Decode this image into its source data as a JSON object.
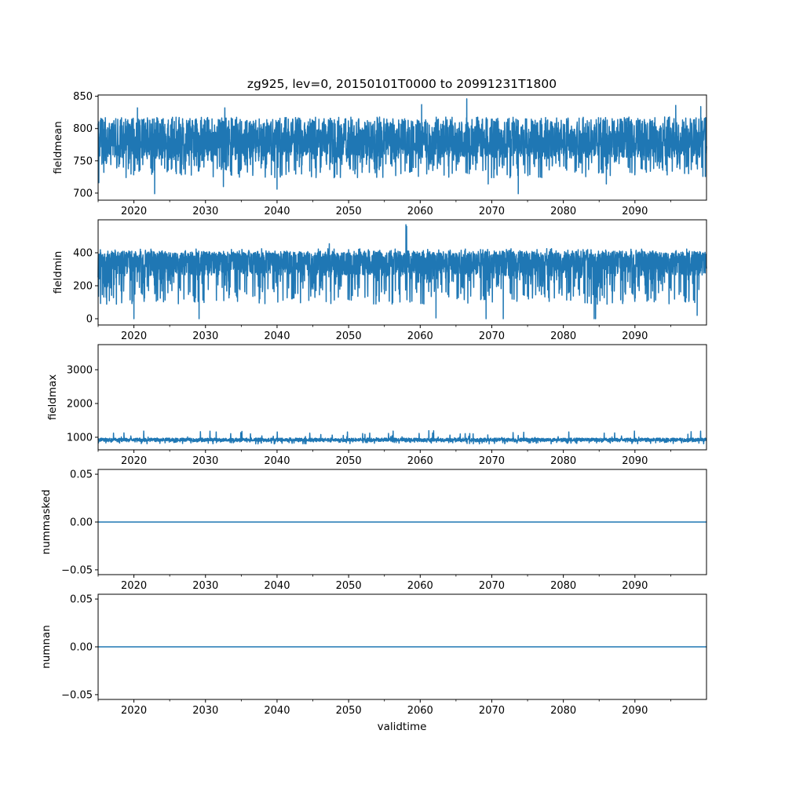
{
  "chart_data": {
    "type": "line",
    "title": "zg925, lev=0, 20150101T0000 to 20991231T1800",
    "xlabel": "validtime",
    "xlim": [
      2015,
      2100
    ],
    "xticks": [
      2020,
      2030,
      2040,
      2050,
      2060,
      2070,
      2080,
      2090
    ],
    "xtick_labels": [
      "2020",
      "2030",
      "2040",
      "2050",
      "2060",
      "2070",
      "2080",
      "2090"
    ],
    "minor_xticks": [
      2015,
      2025,
      2035,
      2045,
      2055,
      2065,
      2075,
      2085,
      2095
    ],
    "color": "#1f77b4",
    "grid": false,
    "panels": [
      {
        "ylabel": "fieldmean",
        "ylim": [
          689,
          852
        ],
        "yticks": [
          700,
          750,
          800,
          850
        ],
        "ytick_labels": [
          "700",
          "750",
          "800",
          "850"
        ],
        "typical_range": [
          735,
          815
        ],
        "center": 775,
        "extremes": [
          [
            2015.1,
            716
          ],
          [
            2020.5,
            832
          ],
          [
            2022.9,
            699
          ],
          [
            2032.5,
            710
          ],
          [
            2032.7,
            832
          ],
          [
            2040.0,
            706
          ],
          [
            2060.2,
            837
          ],
          [
            2066.5,
            846
          ],
          [
            2069.5,
            714
          ],
          [
            2073.7,
            699
          ],
          [
            2086.0,
            714
          ],
          [
            2095.7,
            836
          ],
          [
            2099.2,
            834
          ]
        ]
      },
      {
        "ylabel": "fieldmin",
        "ylim": [
          -38,
          600
        ],
        "yticks": [
          0,
          200,
          400
        ],
        "ytick_labels": [
          "0",
          "200",
          "400"
        ],
        "typical_range": [
          130,
          410
        ],
        "center": 330,
        "extremes": [
          [
            2020.0,
            0
          ],
          [
            2029.1,
            0
          ],
          [
            2047.3,
            455
          ],
          [
            2058.0,
            570
          ],
          [
            2058.1,
            560
          ],
          [
            2062.2,
            5
          ],
          [
            2069.2,
            0
          ],
          [
            2071.6,
            0
          ],
          [
            2084.3,
            0
          ],
          [
            2084.5,
            0
          ],
          [
            2098.7,
            20
          ]
        ]
      },
      {
        "ylabel": "fieldmax",
        "ylim": [
          628,
          3744
        ],
        "yticks": [
          1000,
          2000,
          3000
        ],
        "ytick_labels": [
          "1000",
          "2000",
          "3000"
        ],
        "typical_range": [
          860,
          975
        ],
        "center": 915,
        "extremes": [
          [
            2027.5,
            1010
          ],
          [
            2065.5,
            1000
          ],
          [
            2097.4,
            1090
          ]
        ]
      },
      {
        "ylabel": "nummasked",
        "ylim": [
          -0.055,
          0.055
        ],
        "yticks": [
          -0.05,
          0.0,
          0.05
        ],
        "ytick_labels": [
          "−0.05",
          "0.00",
          "0.05"
        ],
        "constant": 0
      },
      {
        "ylabel": "numnan",
        "ylim": [
          -0.055,
          0.055
        ],
        "yticks": [
          -0.05,
          0.0,
          0.05
        ],
        "ytick_labels": [
          "−0.05",
          "0.00",
          "0.05"
        ],
        "constant": 0
      }
    ]
  }
}
